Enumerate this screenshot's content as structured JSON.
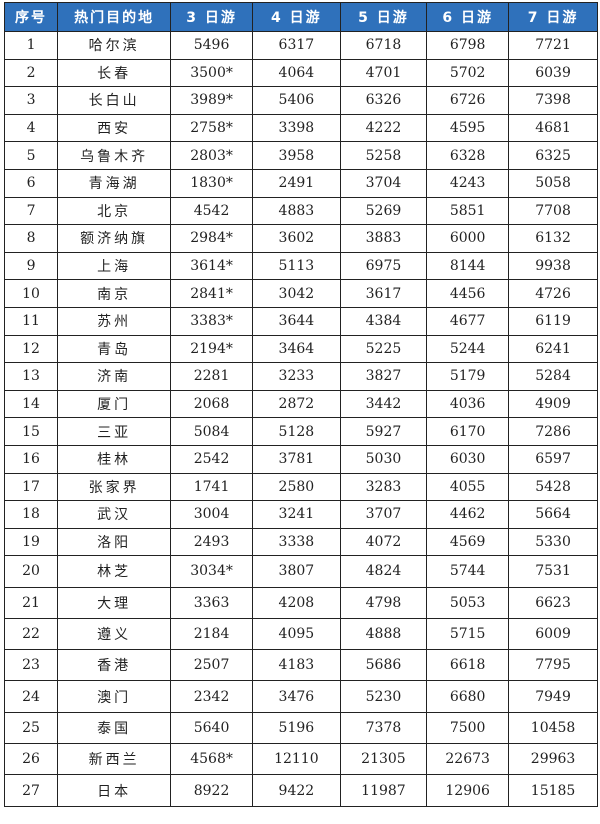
{
  "table": {
    "headers": [
      "序号",
      "热门目的地",
      "3 日游",
      "4 日游",
      "5 日游",
      "6 日游",
      "7 日游"
    ],
    "rows": [
      [
        "1",
        "哈尔滨",
        "5496",
        "6317",
        "6718",
        "6798",
        "7721"
      ],
      [
        "2",
        "长春",
        "3500*",
        "4064",
        "4701",
        "5702",
        "6039"
      ],
      [
        "3",
        "长白山",
        "3989*",
        "5406",
        "6326",
        "6726",
        "7398"
      ],
      [
        "4",
        "西安",
        "2758*",
        "3398",
        "4222",
        "4595",
        "4681"
      ],
      [
        "5",
        "乌鲁木齐",
        "2803*",
        "3958",
        "5258",
        "6328",
        "6325"
      ],
      [
        "6",
        "青海湖",
        "1830*",
        "2491",
        "3704",
        "4243",
        "5058"
      ],
      [
        "7",
        "北京",
        "4542",
        "4883",
        "5269",
        "5851",
        "7708"
      ],
      [
        "8",
        "额济纳旗",
        "2984*",
        "3602",
        "3883",
        "6000",
        "6132"
      ],
      [
        "9",
        "上海",
        "3614*",
        "5113",
        "6975",
        "8144",
        "9938"
      ],
      [
        "10",
        "南京",
        "2841*",
        "3042",
        "3617",
        "4456",
        "4726"
      ],
      [
        "11",
        "苏州",
        "3383*",
        "3644",
        "4384",
        "4677",
        "6119"
      ],
      [
        "12",
        "青岛",
        "2194*",
        "3464",
        "5225",
        "5244",
        "6241"
      ],
      [
        "13",
        "济南",
        "2281",
        "3233",
        "3827",
        "5179",
        "5284"
      ],
      [
        "14",
        "厦门",
        "2068",
        "2872",
        "3442",
        "4036",
        "4909"
      ],
      [
        "15",
        "三亚",
        "5084",
        "5128",
        "5927",
        "6170",
        "7286"
      ],
      [
        "16",
        "桂林",
        "2542",
        "3781",
        "5030",
        "6030",
        "6597"
      ],
      [
        "17",
        "张家界",
        "1741",
        "2580",
        "3283",
        "4055",
        "5428"
      ],
      [
        "18",
        "武汉",
        "3004",
        "3241",
        "3707",
        "4462",
        "5664"
      ],
      [
        "19",
        "洛阳",
        "2493",
        "3338",
        "4072",
        "4569",
        "5330"
      ],
      [
        "20",
        "林芝",
        "3034*",
        "3807",
        "4824",
        "5744",
        "7531"
      ],
      [
        "21",
        "大理",
        "3363",
        "4208",
        "4798",
        "5053",
        "6623"
      ],
      [
        "22",
        "遵义",
        "2184",
        "4095",
        "4888",
        "5715",
        "6009"
      ],
      [
        "23",
        "香港",
        "2507",
        "4183",
        "5686",
        "6618",
        "7795"
      ],
      [
        "24",
        "澳门",
        "2342",
        "3476",
        "5230",
        "6680",
        "7949"
      ],
      [
        "25",
        "泰国",
        "5640",
        "5196",
        "7378",
        "7500",
        "10458"
      ],
      [
        "26",
        "新西兰",
        "4568*",
        "12110",
        "21305",
        "22673",
        "29963"
      ],
      [
        "27",
        "日本",
        "8922",
        "9422",
        "11987",
        "12906",
        "15185"
      ]
    ]
  },
  "colors": {
    "header_bg": "#2f71bb",
    "header_text": "#ffffff",
    "border": "#222222"
  }
}
